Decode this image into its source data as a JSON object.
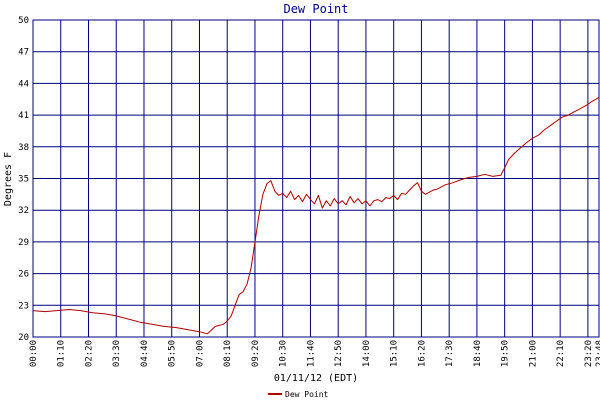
{
  "chart_data": {
    "type": "line",
    "title": "Dew Point",
    "ylabel": "Degrees F",
    "xlabel": "01/11/12 (EDT)",
    "ylim": [
      20,
      50
    ],
    "yticks": [
      20,
      23,
      26,
      29,
      32,
      35,
      38,
      41,
      44,
      47,
      50
    ],
    "xticks": [
      "00:00",
      "01:10",
      "02:20",
      "03:30",
      "04:40",
      "05:50",
      "07:00",
      "08:10",
      "09:20",
      "10:30",
      "11:40",
      "12:50",
      "14:00",
      "15:10",
      "16:20",
      "17:30",
      "18:40",
      "19:50",
      "21:00",
      "22:10",
      "23:20",
      "23:48"
    ],
    "grid": true,
    "legend_position": "bottom-left",
    "colors": {
      "series": "#b00000",
      "grid": "#000080",
      "title": "#000080"
    },
    "series": [
      {
        "name": "Dew Point",
        "x": [
          "00:00",
          "00:30",
          "01:00",
          "01:30",
          "02:00",
          "02:30",
          "03:00",
          "03:30",
          "04:00",
          "04:30",
          "05:00",
          "05:30",
          "06:00",
          "06:30",
          "07:00",
          "07:20",
          "07:40",
          "08:00",
          "08:10",
          "08:20",
          "08:30",
          "08:40",
          "08:50",
          "09:00",
          "09:10",
          "09:20",
          "09:30",
          "09:40",
          "09:50",
          "10:00",
          "10:10",
          "10:20",
          "10:30",
          "10:40",
          "10:50",
          "11:00",
          "11:10",
          "11:20",
          "11:30",
          "11:40",
          "11:50",
          "12:00",
          "12:10",
          "12:20",
          "12:30",
          "12:40",
          "12:50",
          "13:00",
          "13:10",
          "13:20",
          "13:30",
          "13:40",
          "13:50",
          "14:00",
          "14:10",
          "14:20",
          "14:30",
          "14:40",
          "14:50",
          "15:00",
          "15:10",
          "15:20",
          "15:30",
          "15:40",
          "15:50",
          "16:00",
          "16:10",
          "16:20",
          "16:30",
          "16:40",
          "16:50",
          "17:00",
          "17:20",
          "17:40",
          "18:00",
          "18:20",
          "18:40",
          "19:00",
          "19:20",
          "19:40",
          "19:50",
          "20:00",
          "20:15",
          "20:30",
          "20:45",
          "21:00",
          "21:15",
          "21:30",
          "21:45",
          "22:00",
          "22:15",
          "22:30",
          "22:45",
          "23:00",
          "23:15",
          "23:30",
          "23:40",
          "23:48"
        ],
        "values": [
          22.5,
          22.4,
          22.5,
          22.6,
          22.5,
          22.3,
          22.2,
          22.0,
          21.7,
          21.4,
          21.2,
          21.0,
          20.9,
          20.7,
          20.5,
          20.3,
          21.0,
          21.2,
          21.5,
          22.0,
          23.0,
          24.0,
          24.3,
          25.0,
          26.5,
          29.0,
          31.5,
          33.5,
          34.5,
          34.8,
          33.8,
          33.4,
          33.6,
          33.2,
          33.8,
          33.0,
          33.4,
          32.8,
          33.5,
          33.0,
          32.6,
          33.4,
          32.2,
          32.9,
          32.4,
          33.1,
          32.6,
          32.9,
          32.5,
          33.3,
          32.7,
          33.1,
          32.6,
          32.9,
          32.4,
          32.9,
          33.0,
          32.8,
          33.2,
          33.1,
          33.4,
          33.0,
          33.6,
          33.5,
          33.9,
          34.3,
          34.6,
          33.8,
          33.5,
          33.7,
          33.9,
          34.0,
          34.4,
          34.6,
          34.9,
          35.1,
          35.2,
          35.4,
          35.2,
          35.3,
          36.0,
          36.8,
          37.4,
          37.9,
          38.4,
          38.8,
          39.1,
          39.6,
          40.0,
          40.4,
          40.8,
          41.0,
          41.3,
          41.6,
          41.9,
          42.3,
          42.5,
          42.7
        ]
      }
    ]
  }
}
